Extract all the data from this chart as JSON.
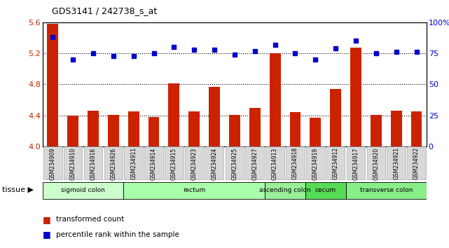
{
  "title": "GDS3141 / 242738_s_at",
  "samples": [
    "GSM234909",
    "GSM234910",
    "GSM234916",
    "GSM234926",
    "GSM234911",
    "GSM234914",
    "GSM234915",
    "GSM234923",
    "GSM234924",
    "GSM234925",
    "GSM234927",
    "GSM234913",
    "GSM234918",
    "GSM234919",
    "GSM234912",
    "GSM234917",
    "GSM234920",
    "GSM234921",
    "GSM234922"
  ],
  "bar_values": [
    5.58,
    4.4,
    4.46,
    4.41,
    4.45,
    4.38,
    4.81,
    4.45,
    4.77,
    4.41,
    4.5,
    5.2,
    4.44,
    4.37,
    4.74,
    5.27,
    4.41,
    4.46,
    4.45
  ],
  "dot_values": [
    88,
    70,
    75,
    73,
    73,
    75,
    80,
    78,
    78,
    74,
    77,
    82,
    75,
    70,
    79,
    85,
    75,
    76,
    76
  ],
  "ylim_left": [
    4.0,
    5.6
  ],
  "ylim_right": [
    0,
    100
  ],
  "yticks_left": [
    4.0,
    4.4,
    4.8,
    5.2,
    5.6
  ],
  "yticks_right": [
    0,
    25,
    50,
    75,
    100
  ],
  "ytick_right_labels": [
    "0",
    "25",
    "50",
    "75",
    "100%"
  ],
  "bar_color": "#cc2200",
  "dot_color": "#0000cc",
  "tissue_groups": [
    {
      "label": "sigmoid colon",
      "start": 0,
      "end": 3,
      "color": "#ccffcc"
    },
    {
      "label": "rectum",
      "start": 4,
      "end": 10,
      "color": "#aaffaa"
    },
    {
      "label": "ascending colon",
      "start": 11,
      "end": 12,
      "color": "#99ee99"
    },
    {
      "label": "cecum",
      "start": 13,
      "end": 14,
      "color": "#55dd55"
    },
    {
      "label": "transverse colon",
      "start": 15,
      "end": 18,
      "color": "#88ee88"
    }
  ],
  "legend_bar_label": "transformed count",
  "legend_dot_label": "percentile rank within the sample",
  "tissue_label": "tissue ▶",
  "xlabel_color": "#cc2200",
  "right_axis_color": "#0000cc",
  "gridline_ticks": [
    4.4,
    4.8,
    5.2
  ]
}
